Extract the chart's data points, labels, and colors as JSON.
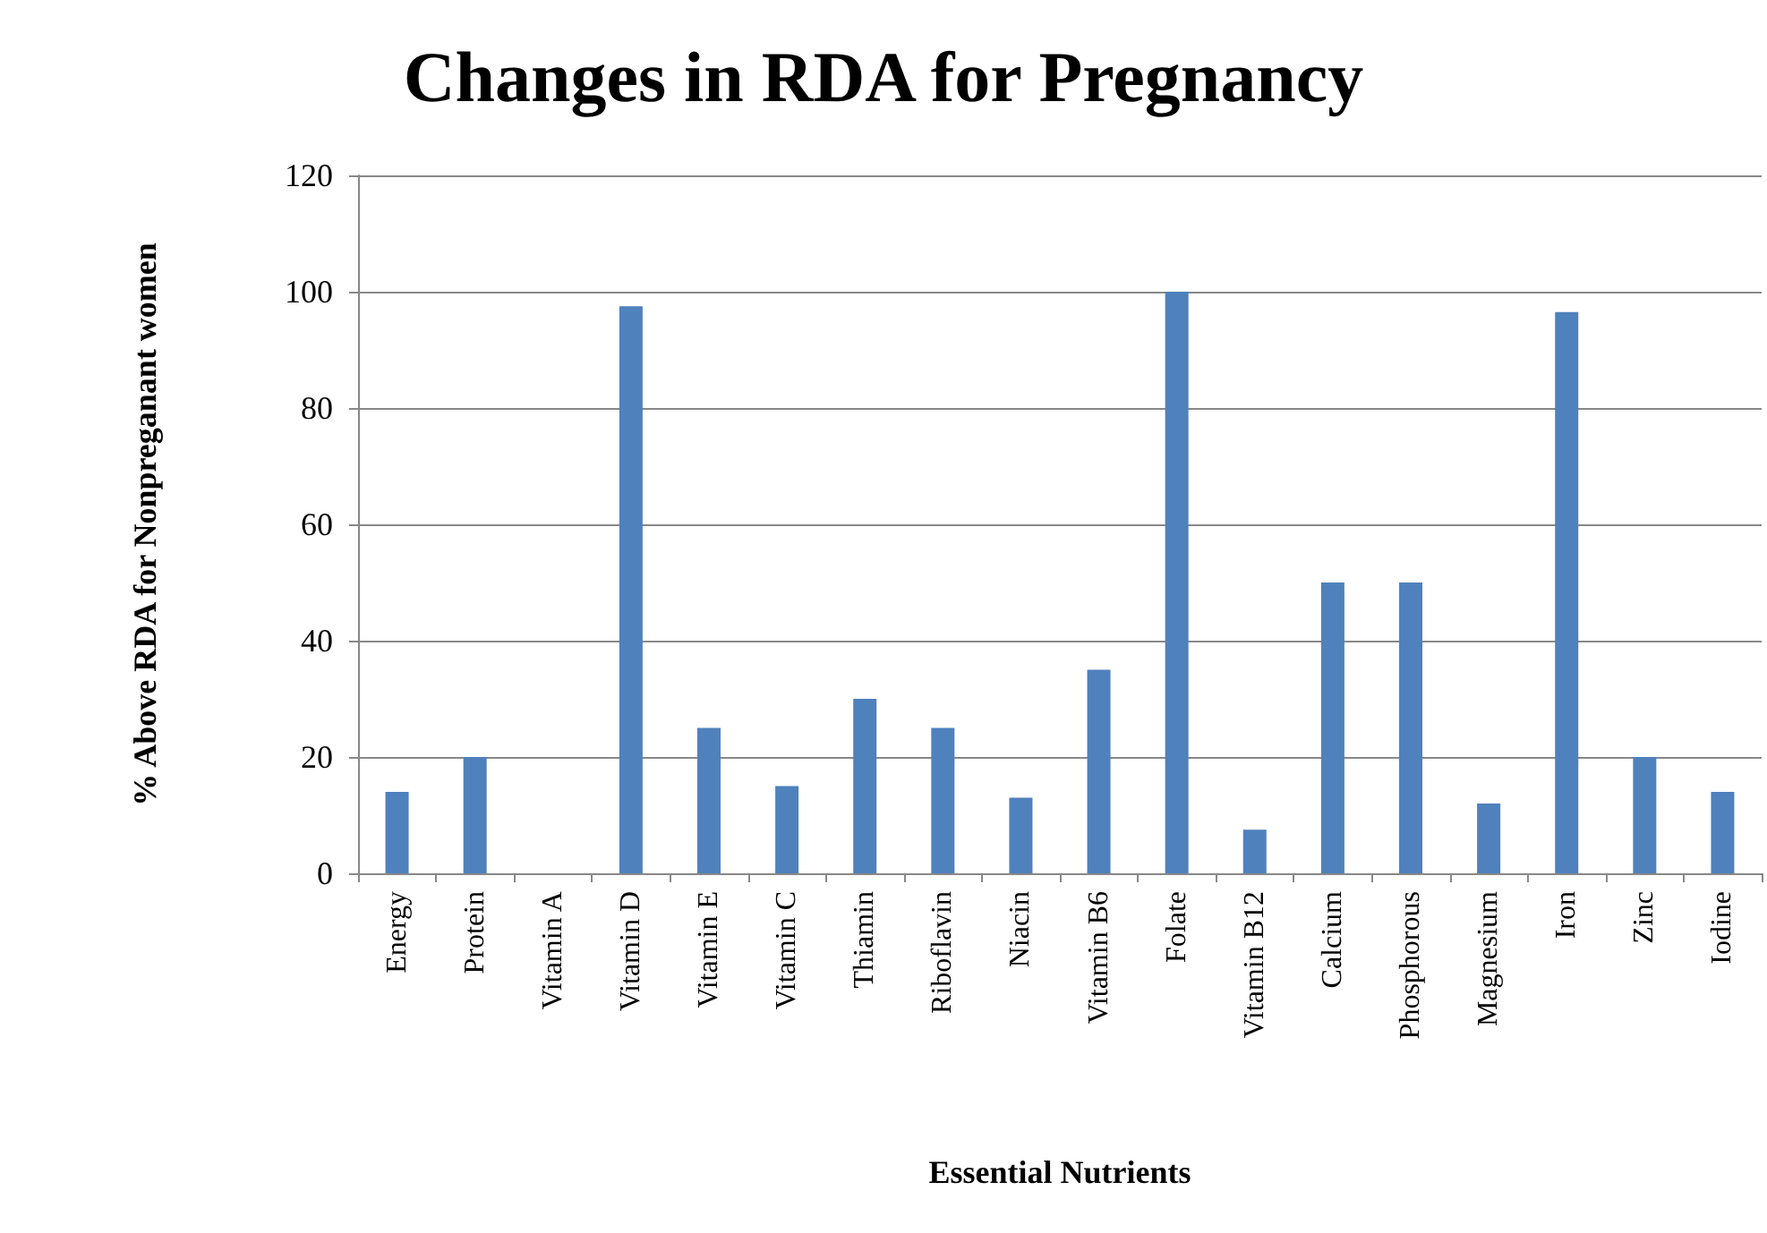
{
  "chart_data": {
    "type": "bar",
    "title": "Changes in RDA for Pregnancy",
    "xlabel": "Essential Nutrients",
    "ylabel": "% Above RDA for Nonpreganant women",
    "categories": [
      "Energy",
      "Protein",
      "Vitamin A",
      "Vitamin D",
      "Vitamin E",
      "Vitamin C",
      "Thiamin",
      "Riboflavin",
      "Niacin",
      "Vitamin B6",
      "Folate",
      "Vitamin B12",
      "Calcium",
      "Phosphorous",
      "Magnesium",
      "Iron",
      "Zinc",
      "Iodine"
    ],
    "values": [
      14,
      20,
      0,
      97.5,
      25,
      15,
      30,
      25,
      13,
      35,
      100,
      7.5,
      50,
      50,
      12,
      96.5,
      20,
      14
    ],
    "color": "#4f81bd",
    "ylim": [
      0,
      120
    ],
    "yticks": [
      0,
      20,
      40,
      60,
      80,
      100,
      120
    ],
    "grid": "y"
  }
}
